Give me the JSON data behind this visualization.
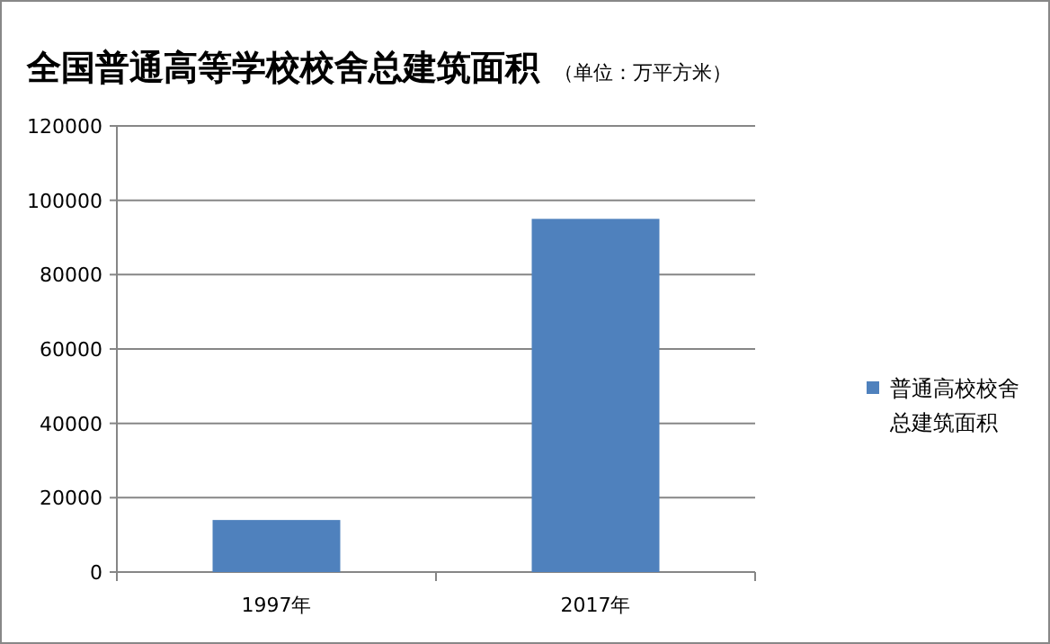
{
  "chart_data": {
    "type": "bar",
    "title": "全国普通高等学校校舍总建筑面积",
    "subtitle": "（单位：万平方米）",
    "categories": [
      "1997年",
      "2017年"
    ],
    "series": [
      {
        "name": "普通高校校舍总建筑面积",
        "color": "#4f81bd",
        "values": [
          14000,
          95000
        ]
      }
    ],
    "ylim": [
      0,
      120000
    ],
    "yticks": [
      0,
      20000,
      40000,
      60000,
      80000,
      100000,
      120000
    ],
    "grid": "y",
    "legend": "right"
  }
}
